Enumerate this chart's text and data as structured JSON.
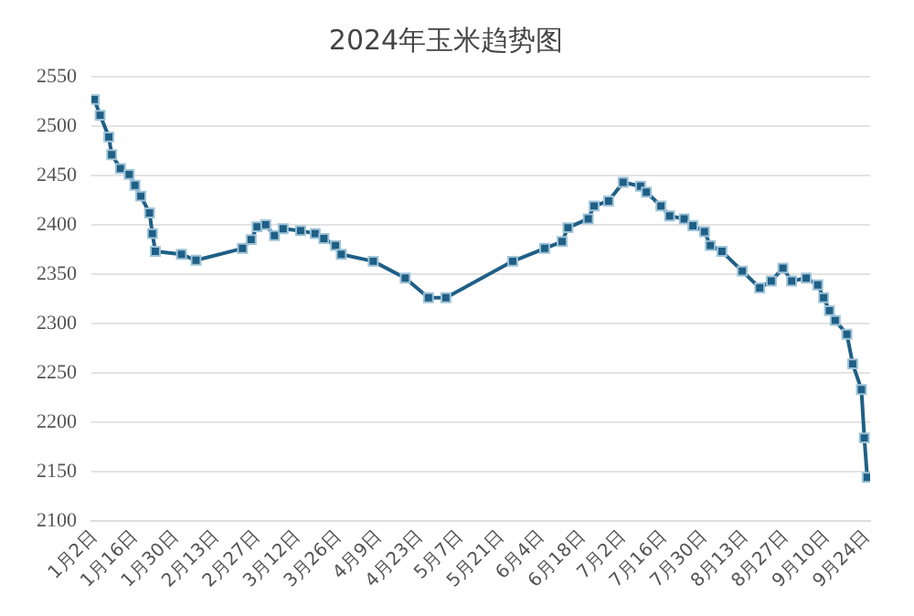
{
  "chart_data": {
    "type": "line",
    "title": "2024年玉米趋势图",
    "x": [
      "--01-02",
      "--01-04",
      "--01-07",
      "--01-08",
      "--01-11",
      "--01-14",
      "--01-16",
      "--01-18",
      "--01-21",
      "--01-22",
      "--01-23",
      "--02-01",
      "--02-06",
      "--02-22",
      "--02-25",
      "--02-27",
      "--03-01",
      "--03-04",
      "--03-07",
      "--03-13",
      "--03-18",
      "--03-21",
      "--03-25",
      "--03-27",
      "--04-07",
      "--04-18",
      "--04-26",
      "--05-02",
      "--05-25",
      "--06-05",
      "--06-11",
      "--06-13",
      "--06-20",
      "--06-22",
      "--06-27",
      "--07-02",
      "--07-08",
      "--07-10",
      "--07-15",
      "--07-18",
      "--07-23",
      "--07-26",
      "--07-30",
      "--08-01",
      "--08-05",
      "--08-12",
      "--08-18",
      "--08-22",
      "--08-26",
      "--08-29",
      "--09-03",
      "--09-07",
      "--09-09",
      "--09-11",
      "--09-13",
      "--09-17",
      "--09-19",
      "--09-22",
      "--09-23",
      "--09-24"
    ],
    "series": [
      {
        "color": "#1f5f86",
        "values": [
          2527,
          2511,
          2489,
          2471,
          2457,
          2451,
          2440,
          2429,
          2412,
          2391,
          2373,
          2370,
          2364,
          2376,
          2385,
          2398,
          2400,
          2389,
          2396,
          2394,
          2391,
          2386,
          2379,
          2370,
          2363,
          2346,
          2326,
          2326,
          2363,
          2376,
          2383,
          2397,
          2406,
          2419,
          2424,
          2443,
          2439,
          2433,
          2419,
          2409,
          2406,
          2399,
          2393,
          2379,
          2373,
          2353,
          2336,
          2343,
          2356,
          2343,
          2346,
          2339,
          2326,
          2313,
          2303,
          2289,
          2259,
          2233,
          2184,
          2144
        ]
      }
    ],
    "xlim": [
      "--01-01",
      "--09-25"
    ],
    "xticks": [
      {
        "value": "--01-02",
        "label": "1月2日"
      },
      {
        "value": "--01-16",
        "label": "1月16日"
      },
      {
        "value": "--01-30",
        "label": "1月30日"
      },
      {
        "value": "--02-13",
        "label": "2月13日"
      },
      {
        "value": "--02-27",
        "label": "2月27日"
      },
      {
        "value": "--03-12",
        "label": "3月12日"
      },
      {
        "value": "--03-26",
        "label": "3月26日"
      },
      {
        "value": "--04-09",
        "label": "4月9日"
      },
      {
        "value": "--04-23",
        "label": "4月23日"
      },
      {
        "value": "--05-07",
        "label": "5月7日"
      },
      {
        "value": "--05-21",
        "label": "5月21日"
      },
      {
        "value": "--06-04",
        "label": "6月4日"
      },
      {
        "value": "--06-18",
        "label": "6月18日"
      },
      {
        "value": "--07-02",
        "label": "7月2日"
      },
      {
        "value": "--07-16",
        "label": "7月16日"
      },
      {
        "value": "--07-30",
        "label": "7月30日"
      },
      {
        "value": "--08-13",
        "label": "8月13日"
      },
      {
        "value": "--08-27",
        "label": "8月27日"
      },
      {
        "value": "--09-10",
        "label": "9月10日"
      },
      {
        "value": "--09-24",
        "label": "9月24日"
      }
    ],
    "ylim": [
      2100,
      2550
    ],
    "yticks": [
      2100,
      2150,
      2200,
      2250,
      2300,
      2350,
      2400,
      2450,
      2500,
      2550
    ],
    "grid": "y",
    "legend": false,
    "marker": "square",
    "line_style": "solid"
  }
}
